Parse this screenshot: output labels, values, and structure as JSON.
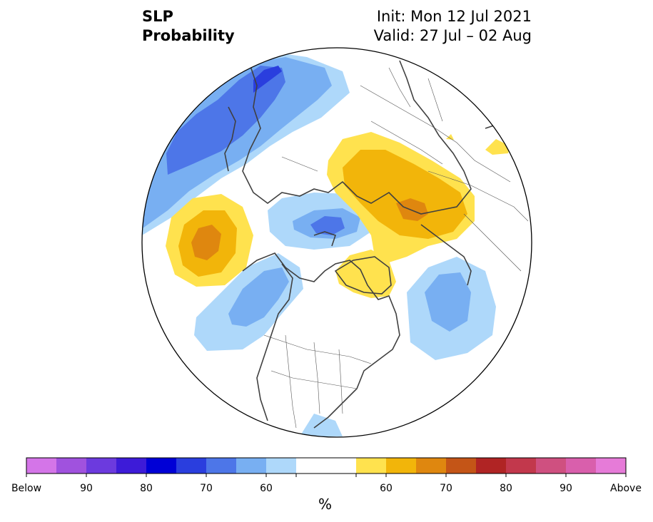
{
  "header": {
    "variable": "SLP",
    "product": "Probability",
    "init": "Init: Mon 12 Jul 2021",
    "valid": "Valid: 27 Jul – 02 Aug"
  },
  "colorbar": {
    "units": "%",
    "colors": [
      "#d475e8",
      "#a052de",
      "#6c3ade",
      "#3d1bd8",
      "#0000d6",
      "#2a3ede",
      "#4d76e8",
      "#78aff2",
      "#aed8fa",
      "#ffffff",
      "#ffe24e",
      "#f2b50a",
      "#df870f",
      "#c45517",
      "#b02424",
      "#c2384c",
      "#cf5080",
      "#d95fac",
      "#e67bd8"
    ],
    "tick_labels": [
      "Below",
      "90",
      "80",
      "70",
      "60",
      "",
      "",
      "60",
      "70",
      "80",
      "90",
      "Above"
    ]
  },
  "map": {
    "projection": "north-polar-stereographic",
    "anomaly_regions": [
      {
        "name": "north-pacific-high",
        "sign": "above",
        "peak_percent": 70
      },
      {
        "name": "europe-russia-high",
        "sign": "above",
        "peak_percent": 70
      },
      {
        "name": "greenland-high",
        "sign": "above",
        "peak_percent": 60
      },
      {
        "name": "east-asia-high",
        "sign": "above",
        "peak_percent": 60
      },
      {
        "name": "kamchatka-siberia-low",
        "sign": "below",
        "peak_percent": 80
      },
      {
        "name": "arctic-ocean-low",
        "sign": "below",
        "peak_percent": 70
      },
      {
        "name": "alaska-canada-low",
        "sign": "below",
        "peak_percent": 70
      },
      {
        "name": "north-atlantic-low",
        "sign": "below",
        "peak_percent": 70
      }
    ]
  }
}
